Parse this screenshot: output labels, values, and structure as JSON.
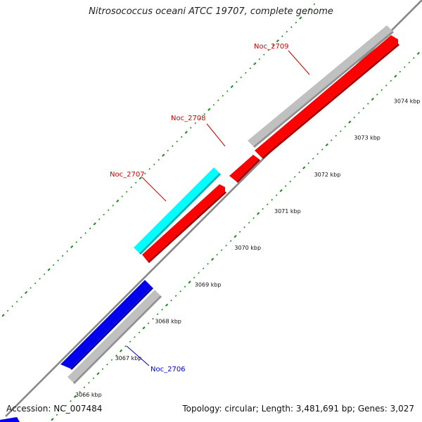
{
  "title": "Nitrosococcus oceani ATCC 19707, complete genome",
  "footer": {
    "accession": "Accession: NC_007484",
    "summary": "Topology: circular; Length: 3,481,691 bp; Genes: 3,027"
  },
  "ticks": [
    {
      "kbp": 3066,
      "label": "3066 kbp"
    },
    {
      "kbp": 3067,
      "label": "3067 kbp"
    },
    {
      "kbp": 3068,
      "label": "3068 kbp"
    },
    {
      "kbp": 3069,
      "label": "3069 kbp"
    },
    {
      "kbp": 3070,
      "label": "3070 kbp"
    },
    {
      "kbp": 3071,
      "label": "3071 kbp"
    },
    {
      "kbp": 3072,
      "label": "3072 kbp"
    },
    {
      "kbp": 3073,
      "label": "3073 kbp"
    },
    {
      "kbp": 3074,
      "label": "3074 kbp"
    }
  ],
  "colors": {
    "backbone": "#888888",
    "tick_dots": "#1a8a1a",
    "red_gene": "#ff0000",
    "blue_gene": "#0000ee",
    "cyan_feature": "#00ffff",
    "grey_feature": "#c0c0c0"
  },
  "genes": [
    {
      "id": "Noc_2706",
      "label": "Noc_2706",
      "strand": "reverse",
      "color": "#0000ee",
      "label_color": "#0000cc"
    },
    {
      "id": "Noc_2707",
      "label": "Noc_2707",
      "strand": "forward",
      "color": "#ff0000",
      "label_color": "#cc0000"
    },
    {
      "id": "Noc_2708",
      "label": "Noc_2708",
      "strand": "forward",
      "color": "#ff0000",
      "label_color": "#cc0000"
    },
    {
      "id": "Noc_2709",
      "label": "Noc_2709",
      "strand": "forward",
      "color": "#ff0000",
      "label_color": "#cc0000"
    }
  ],
  "features": [
    {
      "id": "feature-2706",
      "color": "#c0c0c0"
    },
    {
      "id": "feature-2707",
      "color": "#00ffff"
    },
    {
      "id": "feature-2708-2709",
      "color": "#c0c0c0"
    }
  ]
}
